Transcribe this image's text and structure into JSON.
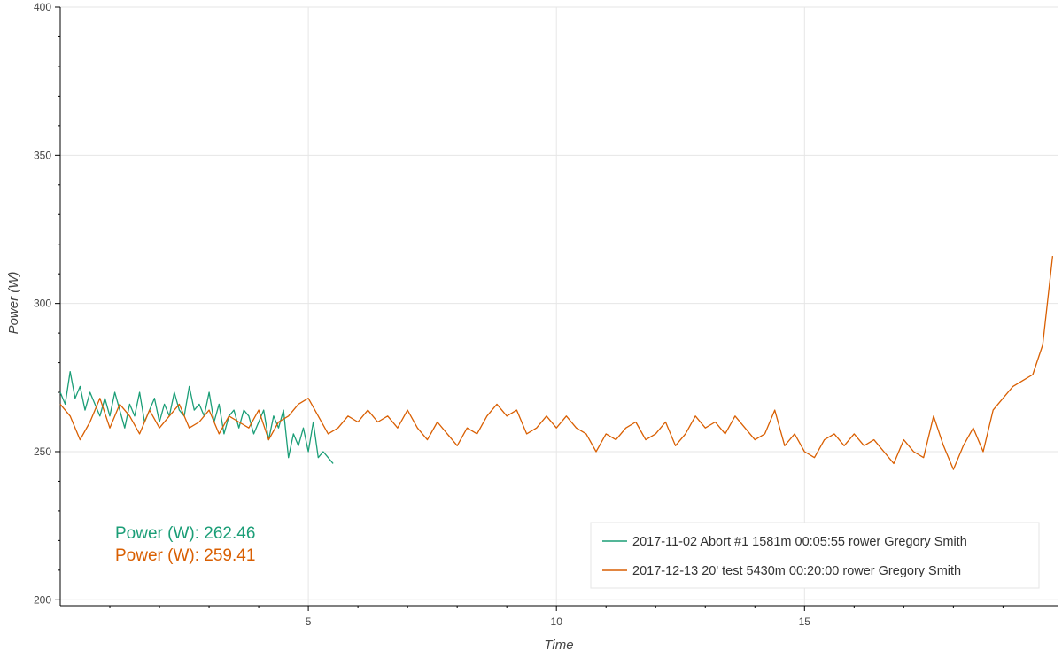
{
  "chart_data": {
    "type": "line",
    "xlabel": "Time",
    "ylabel": "Power (W)",
    "xlim": [
      0,
      20.1
    ],
    "ylim": [
      198,
      400
    ],
    "x_ticks": [
      5,
      10,
      15
    ],
    "y_ticks": [
      200,
      250,
      300,
      350,
      400
    ],
    "grid": true,
    "legend_position": "bottom-right",
    "series": [
      {
        "name": "2017-11-02 Abort #1 1581m 00:05:55 rower Gregory Smith",
        "color": "#1b9e77",
        "x": [
          0,
          0.1,
          0.2,
          0.3,
          0.4,
          0.5,
          0.6,
          0.7,
          0.8,
          0.9,
          1.0,
          1.1,
          1.2,
          1.3,
          1.4,
          1.5,
          1.6,
          1.7,
          1.8,
          1.9,
          2.0,
          2.1,
          2.2,
          2.3,
          2.4,
          2.5,
          2.6,
          2.7,
          2.8,
          2.9,
          3.0,
          3.1,
          3.2,
          3.3,
          3.4,
          3.5,
          3.6,
          3.7,
          3.8,
          3.9,
          4.0,
          4.1,
          4.2,
          4.3,
          4.4,
          4.5,
          4.6,
          4.7,
          4.8,
          4.9,
          5.0,
          5.1,
          5.2,
          5.3,
          5.4,
          5.5
        ],
        "values": [
          270,
          266,
          277,
          268,
          272,
          264,
          270,
          266,
          262,
          268,
          262,
          270,
          264,
          258,
          266,
          262,
          270,
          260,
          264,
          268,
          260,
          266,
          262,
          270,
          264,
          262,
          272,
          264,
          266,
          262,
          270,
          260,
          266,
          256,
          262,
          264,
          258,
          264,
          262,
          256,
          260,
          264,
          254,
          262,
          258,
          264,
          248,
          256,
          252,
          258,
          250,
          260,
          248,
          250,
          248,
          246
        ]
      },
      {
        "name": "2017-12-13 20' test 5430m 00:20:00 rower Gregory Smith",
        "color": "#d95f02",
        "x": [
          0,
          0.2,
          0.4,
          0.6,
          0.8,
          1.0,
          1.2,
          1.4,
          1.6,
          1.8,
          2.0,
          2.2,
          2.4,
          2.6,
          2.8,
          3.0,
          3.2,
          3.4,
          3.6,
          3.8,
          4.0,
          4.2,
          4.4,
          4.6,
          4.8,
          5.0,
          5.2,
          5.4,
          5.6,
          5.8,
          6.0,
          6.2,
          6.4,
          6.6,
          6.8,
          7.0,
          7.2,
          7.4,
          7.6,
          7.8,
          8.0,
          8.2,
          8.4,
          8.6,
          8.8,
          9.0,
          9.2,
          9.4,
          9.6,
          9.8,
          10.0,
          10.2,
          10.4,
          10.6,
          10.8,
          11.0,
          11.2,
          11.4,
          11.6,
          11.8,
          12.0,
          12.2,
          12.4,
          12.6,
          12.8,
          13.0,
          13.2,
          13.4,
          13.6,
          13.8,
          14.0,
          14.2,
          14.4,
          14.6,
          14.8,
          15.0,
          15.2,
          15.4,
          15.6,
          15.8,
          16.0,
          16.2,
          16.4,
          16.6,
          16.8,
          17.0,
          17.2,
          17.4,
          17.6,
          17.8,
          18.0,
          18.2,
          18.4,
          18.6,
          18.8,
          19.0,
          19.2,
          19.4,
          19.6,
          19.8,
          20.0
        ],
        "values": [
          266,
          262,
          254,
          260,
          268,
          258,
          266,
          262,
          256,
          264,
          258,
          262,
          266,
          258,
          260,
          264,
          256,
          262,
          260,
          258,
          264,
          254,
          260,
          262,
          266,
          268,
          262,
          256,
          258,
          262,
          260,
          264,
          260,
          262,
          258,
          264,
          258,
          254,
          260,
          256,
          252,
          258,
          256,
          262,
          266,
          262,
          264,
          256,
          258,
          262,
          258,
          262,
          258,
          256,
          250,
          256,
          254,
          258,
          260,
          254,
          256,
          260,
          252,
          256,
          262,
          258,
          260,
          256,
          262,
          258,
          254,
          256,
          264,
          252,
          256,
          250,
          248,
          254,
          256,
          252,
          256,
          252,
          254,
          250,
          246,
          254,
          250,
          248,
          262,
          252,
          244,
          252,
          258,
          250,
          264,
          268,
          272,
          274,
          276,
          286,
          316
        ]
      }
    ],
    "annotations": [
      {
        "label": "Power (W): 262.46",
        "color": "#1b9e77"
      },
      {
        "label": "Power (W): 259.41",
        "color": "#d95f02"
      }
    ]
  }
}
